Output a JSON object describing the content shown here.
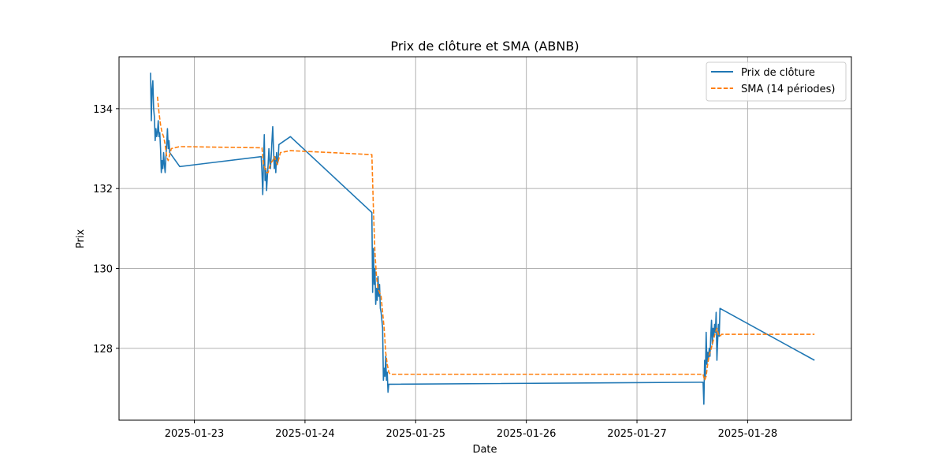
{
  "chart_data": {
    "type": "line",
    "title": "Prix de clôture et SMA (ABNB)",
    "xlabel": "Date",
    "ylabel": "Prix",
    "xlim": [
      "2025-01-22T07:40",
      "2025-01-28T22:30"
    ],
    "ylim": [
      126.2,
      135.3
    ],
    "x_ticks": [
      "2025-01-23",
      "2025-01-24",
      "2025-01-25",
      "2025-01-26",
      "2025-01-27",
      "2025-01-28"
    ],
    "y_ticks": [
      128,
      130,
      132,
      134
    ],
    "grid": true,
    "legend_position": "top-right",
    "series": [
      {
        "name": "Prix de clôture",
        "color": "#1f77b4",
        "style": "solid",
        "points": [
          [
            "2025-01-22T14:30",
            134.9
          ],
          [
            "2025-01-22T14:40",
            133.7
          ],
          [
            "2025-01-22T14:50",
            134.5
          ],
          [
            "2025-01-22T15:00",
            134.7
          ],
          [
            "2025-01-22T15:10",
            134.0
          ],
          [
            "2025-01-22T15:20",
            133.8
          ],
          [
            "2025-01-22T15:30",
            133.2
          ],
          [
            "2025-01-22T15:40",
            133.5
          ],
          [
            "2025-01-22T15:50",
            133.3
          ],
          [
            "2025-01-22T16:00",
            133.4
          ],
          [
            "2025-01-22T16:10",
            133.7
          ],
          [
            "2025-01-22T16:20",
            133.3
          ],
          [
            "2025-01-22T16:30",
            133.4
          ],
          [
            "2025-01-22T16:40",
            133.0
          ],
          [
            "2025-01-22T16:50",
            132.4
          ],
          [
            "2025-01-22T17:00",
            132.7
          ],
          [
            "2025-01-22T17:10",
            132.5
          ],
          [
            "2025-01-22T17:20",
            132.9
          ],
          [
            "2025-01-22T17:30",
            132.6
          ],
          [
            "2025-01-22T17:40",
            132.4
          ],
          [
            "2025-01-22T17:50",
            132.8
          ],
          [
            "2025-01-22T18:00",
            133.1
          ],
          [
            "2025-01-22T18:10",
            133.5
          ],
          [
            "2025-01-22T18:20",
            133.0
          ],
          [
            "2025-01-22T18:30",
            133.2
          ],
          [
            "2025-01-22T18:40",
            132.9
          ],
          [
            "2025-01-22T20:50",
            132.55
          ],
          [
            "2025-01-23T14:30",
            132.8
          ],
          [
            "2025-01-23T14:40",
            132.4
          ],
          [
            "2025-01-23T14:50",
            131.85
          ],
          [
            "2025-01-23T15:00",
            132.6
          ],
          [
            "2025-01-23T15:10",
            133.35
          ],
          [
            "2025-01-23T15:20",
            132.2
          ],
          [
            "2025-01-23T15:30",
            132.5
          ],
          [
            "2025-01-23T15:40",
            131.95
          ],
          [
            "2025-01-23T15:50",
            132.3
          ],
          [
            "2025-01-23T16:00",
            132.6
          ],
          [
            "2025-01-23T16:10",
            133.0
          ],
          [
            "2025-01-23T16:20",
            132.7
          ],
          [
            "2025-01-23T16:30",
            132.5
          ],
          [
            "2025-01-23T16:40",
            132.8
          ],
          [
            "2025-01-23T16:50",
            133.2
          ],
          [
            "2025-01-23T17:00",
            133.55
          ],
          [
            "2025-01-23T17:10",
            133.0
          ],
          [
            "2025-01-23T17:20",
            132.5
          ],
          [
            "2025-01-23T17:30",
            132.8
          ],
          [
            "2025-01-23T17:40",
            132.4
          ],
          [
            "2025-01-23T17:50",
            132.9
          ],
          [
            "2025-01-23T18:00",
            132.6
          ],
          [
            "2025-01-23T18:10",
            132.7
          ],
          [
            "2025-01-23T18:20",
            133.1
          ],
          [
            "2025-01-23T20:50",
            133.3
          ],
          [
            "2025-01-24T14:30",
            131.4
          ],
          [
            "2025-01-24T14:40",
            129.4
          ],
          [
            "2025-01-24T14:50",
            130.5
          ],
          [
            "2025-01-24T15:00",
            129.6
          ],
          [
            "2025-01-24T15:10",
            130.0
          ],
          [
            "2025-01-24T15:20",
            129.1
          ],
          [
            "2025-01-24T15:30",
            129.5
          ],
          [
            "2025-01-24T15:40",
            129.2
          ],
          [
            "2025-01-24T15:50",
            129.8
          ],
          [
            "2025-01-24T16:00",
            129.3
          ],
          [
            "2025-01-24T16:10",
            129.6
          ],
          [
            "2025-01-24T16:20",
            129.0
          ],
          [
            "2025-01-24T16:30",
            128.9
          ],
          [
            "2025-01-24T16:40",
            128.7
          ],
          [
            "2025-01-24T16:50",
            128.5
          ],
          [
            "2025-01-24T17:00",
            127.2
          ],
          [
            "2025-01-24T17:10",
            127.5
          ],
          [
            "2025-01-24T17:20",
            127.3
          ],
          [
            "2025-01-24T17:30",
            127.8
          ],
          [
            "2025-01-24T17:40",
            127.2
          ],
          [
            "2025-01-24T17:50",
            127.4
          ],
          [
            "2025-01-24T18:00",
            126.9
          ],
          [
            "2025-01-24T18:10",
            127.1
          ],
          [
            "2025-01-27T14:20",
            127.15
          ],
          [
            "2025-01-27T14:30",
            126.6
          ],
          [
            "2025-01-27T14:40",
            127.7
          ],
          [
            "2025-01-27T14:50",
            127.3
          ],
          [
            "2025-01-27T15:00",
            128.4
          ],
          [
            "2025-01-27T15:10",
            127.6
          ],
          [
            "2025-01-27T15:20",
            127.9
          ],
          [
            "2025-01-27T15:30",
            127.7
          ],
          [
            "2025-01-27T15:40",
            128.0
          ],
          [
            "2025-01-27T15:50",
            127.8
          ],
          [
            "2025-01-27T16:00",
            128.3
          ],
          [
            "2025-01-27T16:10",
            128.7
          ],
          [
            "2025-01-27T16:20",
            128.1
          ],
          [
            "2025-01-27T16:30",
            128.5
          ],
          [
            "2025-01-27T16:40",
            128.3
          ],
          [
            "2025-01-27T16:50",
            128.6
          ],
          [
            "2025-01-27T17:00",
            128.4
          ],
          [
            "2025-01-27T17:10",
            128.9
          ],
          [
            "2025-01-27T17:20",
            127.7
          ],
          [
            "2025-01-27T17:30",
            128.2
          ],
          [
            "2025-01-27T17:40",
            128.6
          ],
          [
            "2025-01-27T17:50",
            128.3
          ],
          [
            "2025-01-27T18:00",
            129.0
          ],
          [
            "2025-01-28T14:30",
            127.7
          ]
        ]
      },
      {
        "name": "SMA (14 périodes)",
        "color": "#ff7f0e",
        "style": "dashed",
        "points": [
          [
            "2025-01-22T16:00",
            134.3
          ],
          [
            "2025-01-22T16:20",
            133.9
          ],
          [
            "2025-01-22T16:40",
            133.6
          ],
          [
            "2025-01-22T17:00",
            133.4
          ],
          [
            "2025-01-22T17:20",
            133.3
          ],
          [
            "2025-01-22T17:40",
            133.1
          ],
          [
            "2025-01-22T18:00",
            132.8
          ],
          [
            "2025-01-22T18:20",
            132.7
          ],
          [
            "2025-01-22T18:40",
            132.85
          ],
          [
            "2025-01-22T19:00",
            133.0
          ],
          [
            "2025-01-22T20:50",
            133.05
          ],
          [
            "2025-01-23T14:40",
            133.02
          ],
          [
            "2025-01-23T15:00",
            132.6
          ],
          [
            "2025-01-23T15:20",
            132.5
          ],
          [
            "2025-01-23T15:40",
            132.4
          ],
          [
            "2025-01-23T16:00",
            132.4
          ],
          [
            "2025-01-23T16:20",
            132.55
          ],
          [
            "2025-01-23T16:40",
            132.65
          ],
          [
            "2025-01-23T17:00",
            132.7
          ],
          [
            "2025-01-23T17:20",
            132.8
          ],
          [
            "2025-01-23T17:40",
            132.7
          ],
          [
            "2025-01-23T18:00",
            132.6
          ],
          [
            "2025-01-23T18:20",
            132.75
          ],
          [
            "2025-01-23T18:40",
            132.9
          ],
          [
            "2025-01-23T20:50",
            132.95
          ],
          [
            "2025-01-24T14:30",
            132.85
          ],
          [
            "2025-01-24T14:50",
            131.5
          ],
          [
            "2025-01-24T15:10",
            130.4
          ],
          [
            "2025-01-24T15:30",
            129.8
          ],
          [
            "2025-01-24T15:50",
            129.5
          ],
          [
            "2025-01-24T16:10",
            129.4
          ],
          [
            "2025-01-24T16:30",
            129.3
          ],
          [
            "2025-01-24T16:50",
            128.9
          ],
          [
            "2025-01-24T17:10",
            128.5
          ],
          [
            "2025-01-24T17:30",
            127.9
          ],
          [
            "2025-01-24T17:50",
            127.6
          ],
          [
            "2025-01-24T18:10",
            127.4
          ],
          [
            "2025-01-24T18:30",
            127.35
          ],
          [
            "2025-01-27T14:20",
            127.35
          ],
          [
            "2025-01-27T14:40",
            127.2
          ],
          [
            "2025-01-27T15:00",
            127.3
          ],
          [
            "2025-01-27T15:20",
            127.6
          ],
          [
            "2025-01-27T15:40",
            127.85
          ],
          [
            "2025-01-27T16:00",
            127.95
          ],
          [
            "2025-01-27T16:20",
            128.1
          ],
          [
            "2025-01-27T16:40",
            128.25
          ],
          [
            "2025-01-27T17:00",
            128.4
          ],
          [
            "2025-01-27T17:20",
            128.5
          ],
          [
            "2025-01-27T17:40",
            128.35
          ],
          [
            "2025-01-27T18:00",
            128.3
          ],
          [
            "2025-01-27T18:20",
            128.35
          ],
          [
            "2025-01-28T14:30",
            128.35
          ]
        ]
      }
    ]
  }
}
